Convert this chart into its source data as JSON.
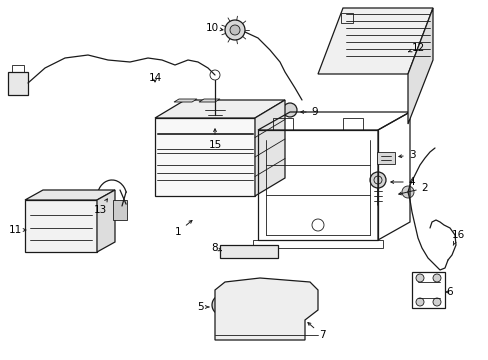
{
  "bg_color": "#ffffff",
  "line_color": "#1a1a1a",
  "label_color": "#000000",
  "fig_w": 4.89,
  "fig_h": 3.6,
  "dpi": 100
}
